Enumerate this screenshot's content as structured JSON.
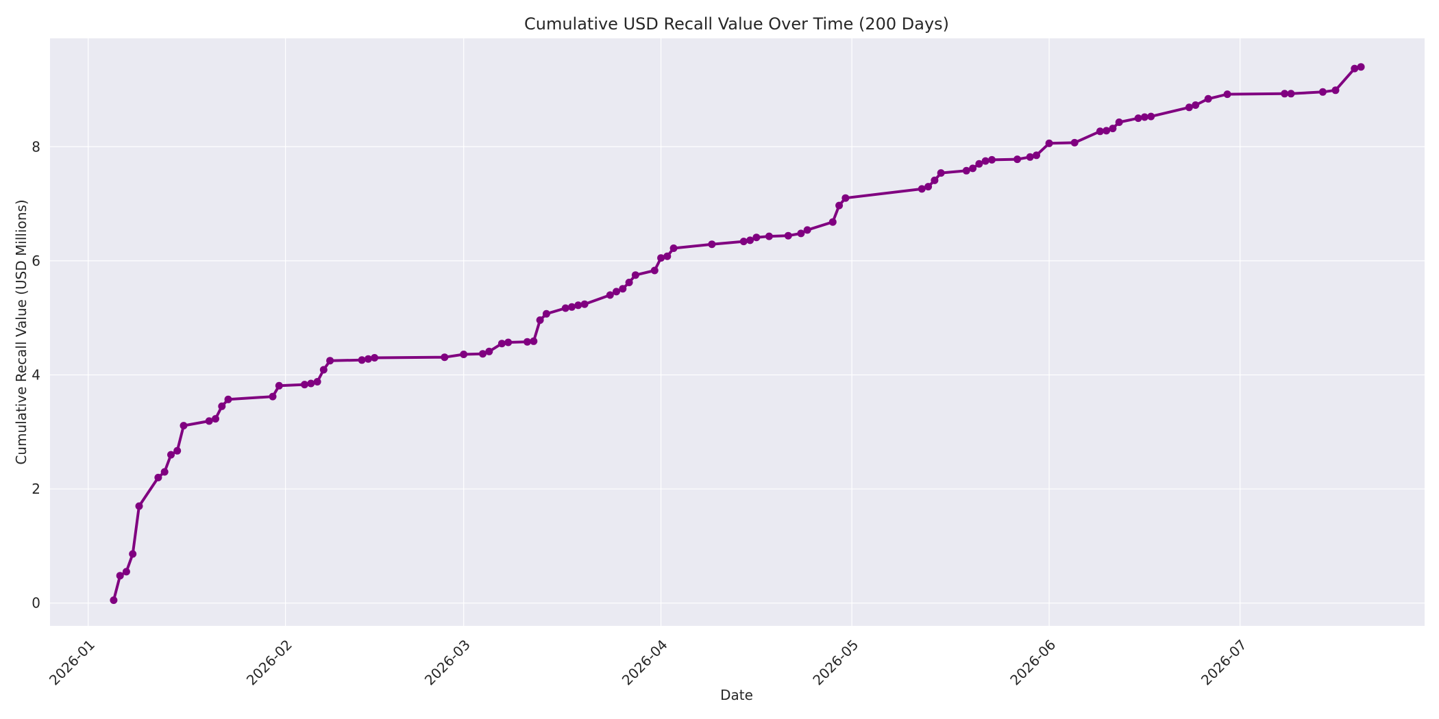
{
  "chart_data": {
    "type": "line",
    "title": "Cumulative USD Recall Value Over Time (200 Days)",
    "xlabel": "Date",
    "ylabel": "Cumulative Recall Value (USD Millions)",
    "x_tick_labels": [
      "2026-01",
      "2026-02",
      "2026-03",
      "2026-04",
      "2026-05",
      "2026-06",
      "2026-07"
    ],
    "y_ticks": [
      0,
      2,
      4,
      6,
      8
    ],
    "xlim": [
      "2025-12-26",
      "2026-07-30"
    ],
    "ylim": [
      -0.4,
      9.9
    ],
    "grid": true,
    "colors": {
      "line": "#800080",
      "plot_background": "#eaeaf2",
      "grid": "#ffffff"
    },
    "series": [
      {
        "x": [
          "2026-01-05",
          "2026-01-06",
          "2026-01-07",
          "2026-01-08",
          "2026-01-09",
          "2026-01-12",
          "2026-01-13",
          "2026-01-14",
          "2026-01-15",
          "2026-01-16",
          "2026-01-20",
          "2026-01-21",
          "2026-01-22",
          "2026-01-23",
          "2026-01-30",
          "2026-01-31",
          "2026-02-04",
          "2026-02-05",
          "2026-02-06",
          "2026-02-07",
          "2026-02-08",
          "2026-02-13",
          "2026-02-14",
          "2026-02-15",
          "2026-02-26",
          "2026-03-01",
          "2026-03-04",
          "2026-03-05",
          "2026-03-07",
          "2026-03-08",
          "2026-03-11",
          "2026-03-12",
          "2026-03-13",
          "2026-03-14",
          "2026-03-17",
          "2026-03-18",
          "2026-03-19",
          "2026-03-20",
          "2026-03-24",
          "2026-03-25",
          "2026-03-26",
          "2026-03-27",
          "2026-03-28",
          "2026-03-31",
          "2026-04-01",
          "2026-04-02",
          "2026-04-03",
          "2026-04-09",
          "2026-04-14",
          "2026-04-15",
          "2026-04-16",
          "2026-04-18",
          "2026-04-21",
          "2026-04-23",
          "2026-04-24",
          "2026-04-28",
          "2026-04-29",
          "2026-04-30",
          "2026-05-12",
          "2026-05-13",
          "2026-05-14",
          "2026-05-15",
          "2026-05-19",
          "2026-05-20",
          "2026-05-21",
          "2026-05-22",
          "2026-05-23",
          "2026-05-27",
          "2026-05-29",
          "2026-05-30",
          "2026-06-01",
          "2026-06-05",
          "2026-06-09",
          "2026-06-10",
          "2026-06-11",
          "2026-06-12",
          "2026-06-15",
          "2026-06-16",
          "2026-06-17",
          "2026-06-23",
          "2026-06-24",
          "2026-06-26",
          "2026-06-29",
          "2026-07-08",
          "2026-07-09",
          "2026-07-14",
          "2026-07-16",
          "2026-07-19",
          "2026-07-20"
        ],
        "values": [
          0.05,
          0.48,
          0.55,
          0.86,
          1.7,
          2.2,
          2.3,
          2.6,
          2.67,
          3.11,
          3.19,
          3.23,
          3.45,
          3.57,
          3.62,
          3.81,
          3.83,
          3.85,
          3.88,
          4.09,
          4.25,
          4.26,
          4.28,
          4.3,
          4.31,
          4.36,
          4.37,
          4.41,
          4.55,
          4.57,
          4.58,
          4.59,
          4.96,
          5.07,
          5.17,
          5.19,
          5.22,
          5.24,
          5.4,
          5.46,
          5.51,
          5.62,
          5.75,
          5.83,
          6.05,
          6.08,
          6.22,
          6.29,
          6.34,
          6.36,
          6.41,
          6.43,
          6.44,
          6.48,
          6.54,
          6.68,
          6.97,
          7.1,
          7.26,
          7.3,
          7.41,
          7.54,
          7.58,
          7.62,
          7.7,
          7.75,
          7.77,
          7.78,
          7.82,
          7.85,
          8.06,
          8.07,
          8.27,
          8.28,
          8.32,
          8.43,
          8.5,
          8.52,
          8.53,
          8.69,
          8.73,
          8.84,
          8.92,
          8.93,
          8.93,
          8.96,
          8.99,
          9.37,
          9.4
        ]
      }
    ]
  }
}
